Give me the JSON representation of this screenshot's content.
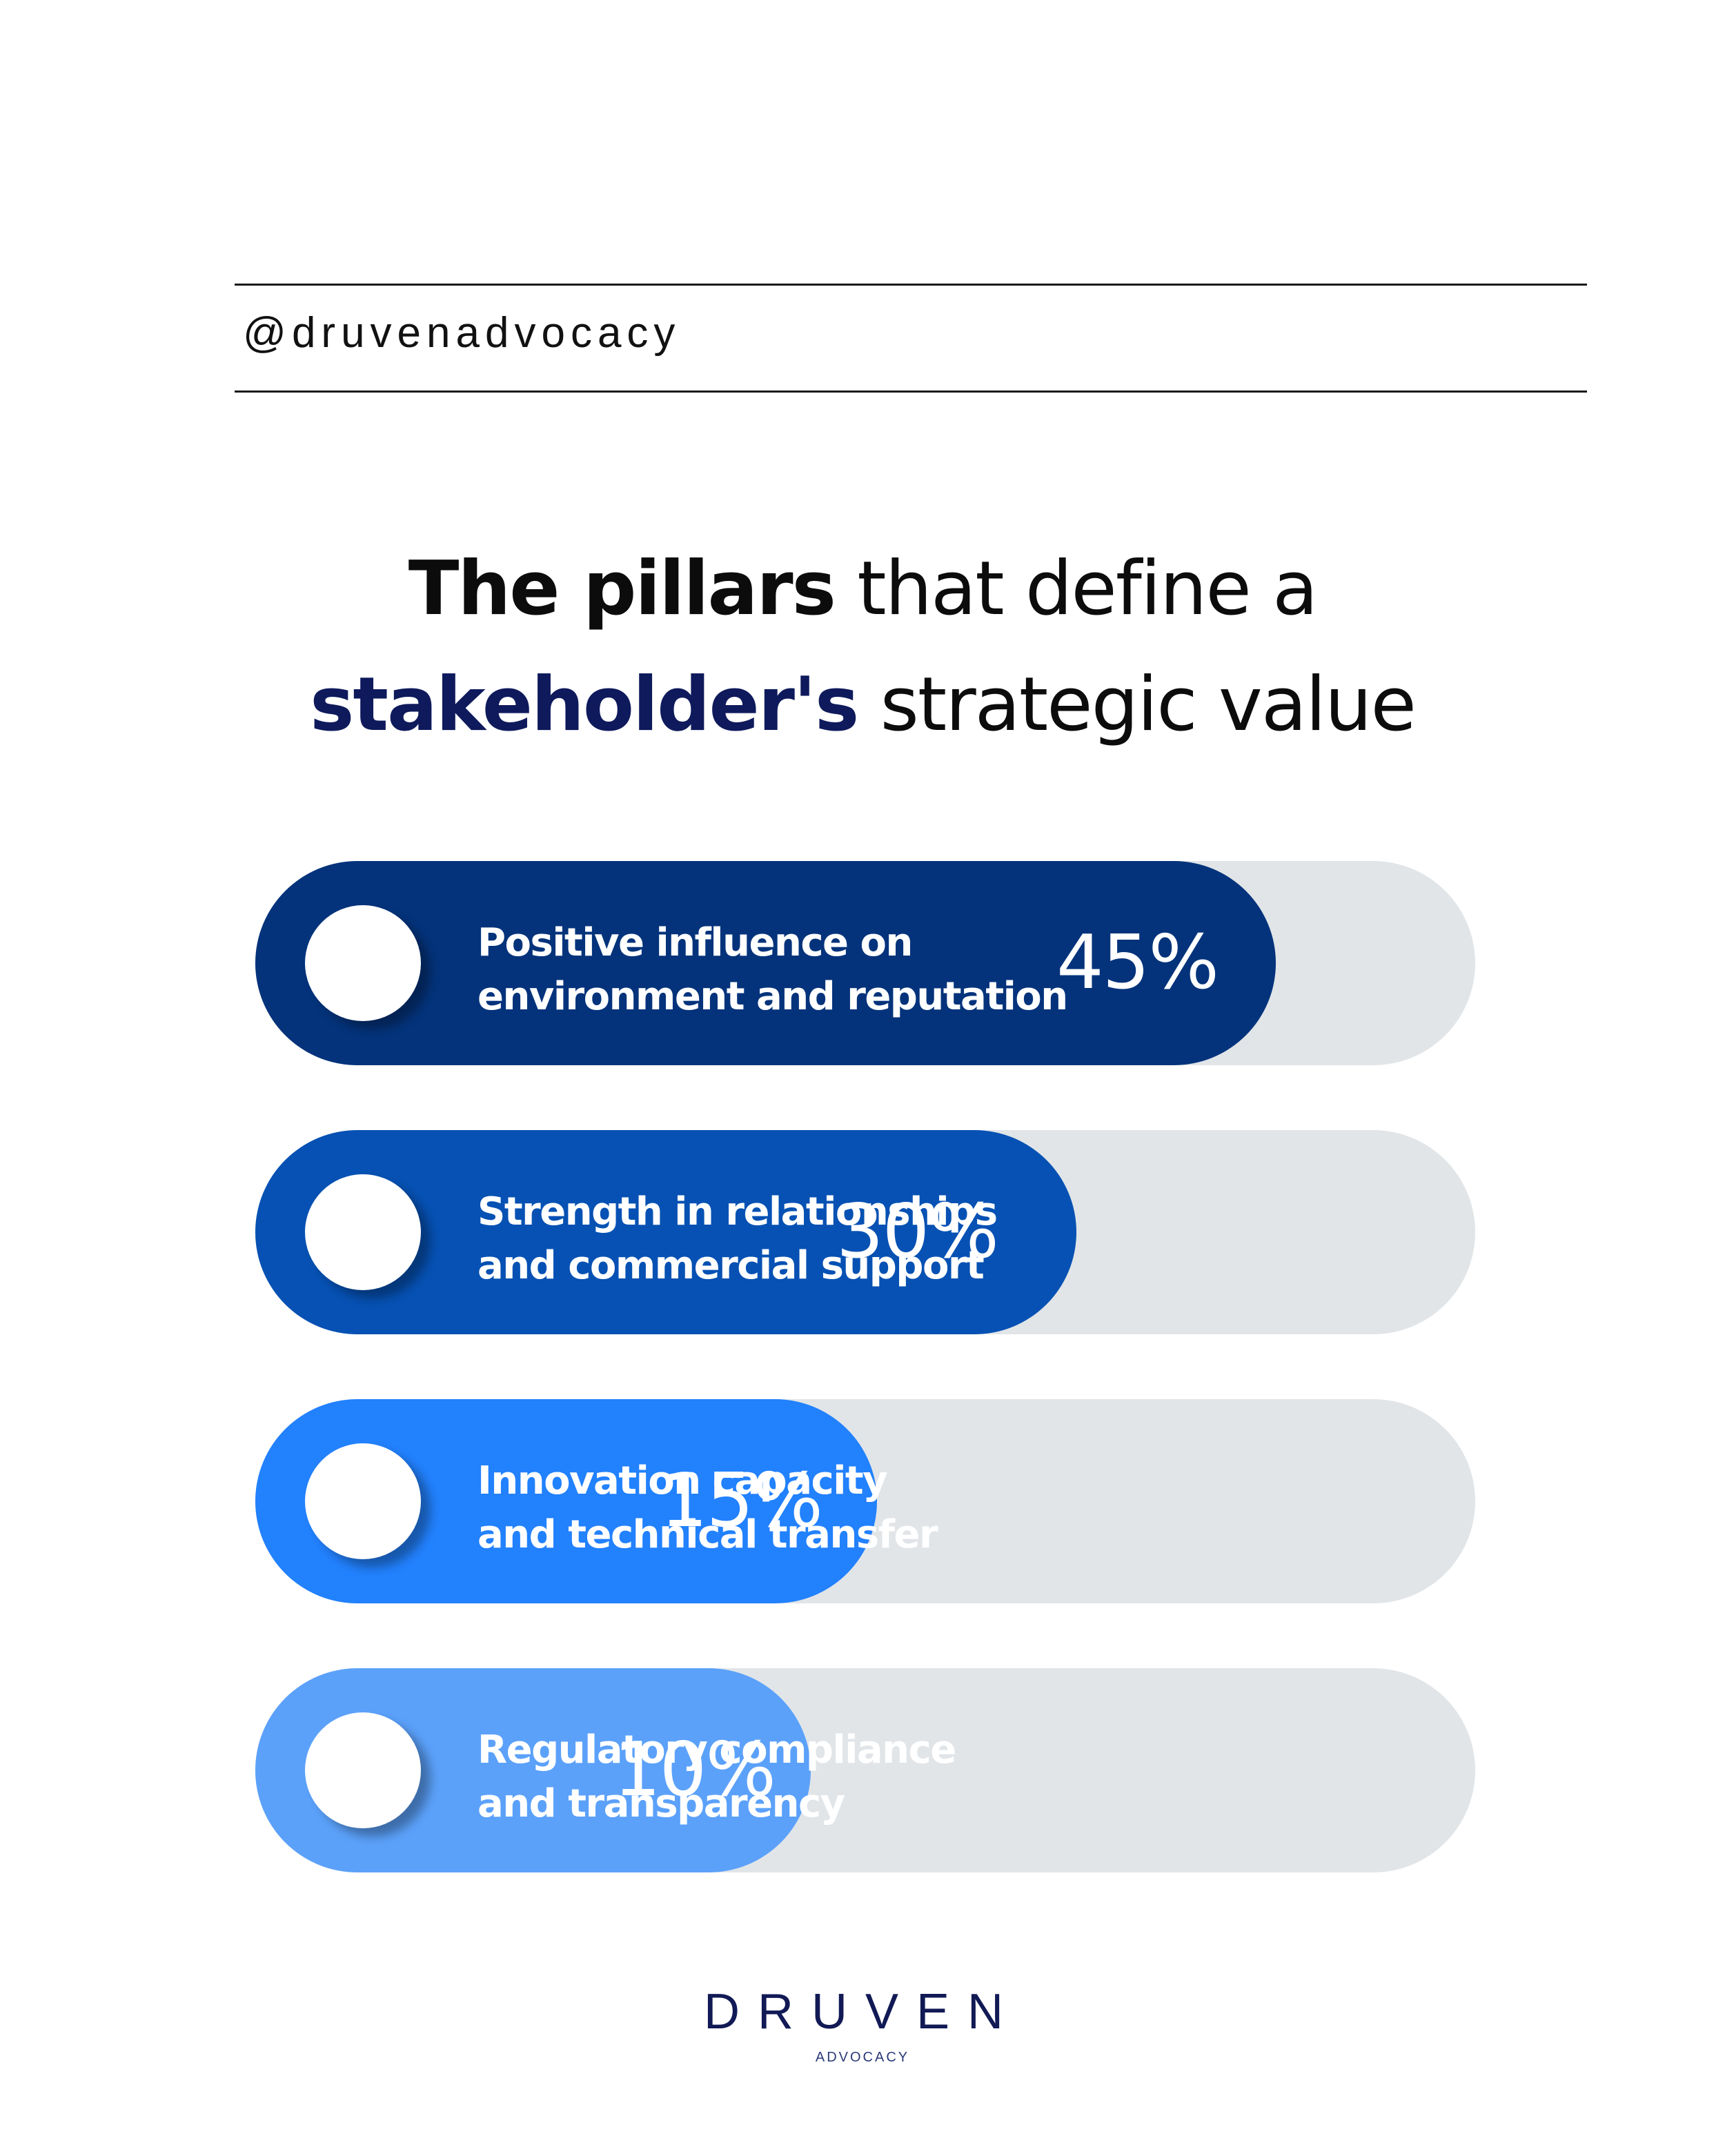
{
  "header": {
    "handle": "@druvenadvocacy"
  },
  "headline": {
    "line1_bold": "The pillars",
    "line1_rest": " that define a",
    "line2_accent": "stakeholder's",
    "line2_rest": " strategic value"
  },
  "chart_data": {
    "type": "bar",
    "orientation": "horizontal",
    "unit": "%",
    "scale_max": 60,
    "categories": [
      [
        "Positive influence on",
        "environment and reputation"
      ],
      [
        "Strength in relationships",
        "and commercial support"
      ],
      [
        "Innovation capacity",
        "and technical transfer"
      ],
      [
        "Regulatory compliance",
        "and transparency"
      ]
    ],
    "values": [
      45,
      30,
      15,
      10
    ],
    "value_labels": [
      "45%",
      "30%",
      "15%",
      "10%"
    ],
    "colors": [
      "#04337b",
      "#0651b3",
      "#2281fd",
      "#5ba1fa"
    ],
    "track_color": "#e1e5e8"
  },
  "brand": {
    "name": "DRUVEN",
    "sub": "ADVOCACY"
  }
}
